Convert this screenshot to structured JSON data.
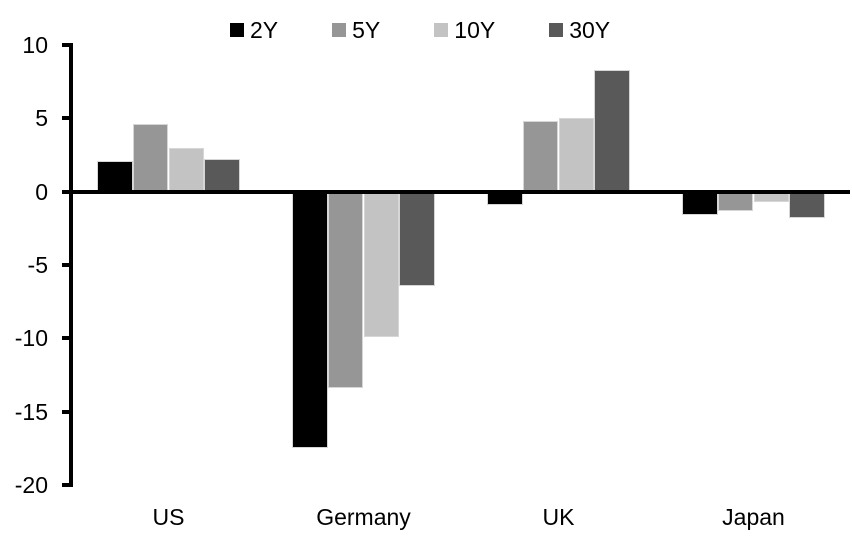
{
  "chart_data": {
    "type": "bar",
    "title": "",
    "categories": [
      "US",
      "Germany",
      "UK",
      "Japan"
    ],
    "series": [
      {
        "name": "2Y",
        "color": "#000000",
        "values": [
          2.1,
          -17.5,
          -0.9,
          -1.6
        ]
      },
      {
        "name": "5Y",
        "color": "#969696",
        "values": [
          4.6,
          -13.4,
          4.8,
          -1.3
        ]
      },
      {
        "name": "10Y",
        "color": "#c3c3c3",
        "values": [
          3.0,
          -9.9,
          5.0,
          -0.7
        ]
      },
      {
        "name": "30Y",
        "color": "#595959",
        "values": [
          2.2,
          -6.4,
          8.3,
          -1.8
        ]
      }
    ],
    "xlabel": "",
    "ylabel": "",
    "ylim": [
      -20,
      10
    ],
    "y_tick_step": 5,
    "y_ticks": [
      10,
      5,
      0,
      -5,
      -10,
      -15,
      -20
    ],
    "grid": false,
    "legend_position": "top",
    "axis_color": "#000000",
    "background_color": "#ffffff",
    "bar_border_color": "#d6d6d6"
  }
}
